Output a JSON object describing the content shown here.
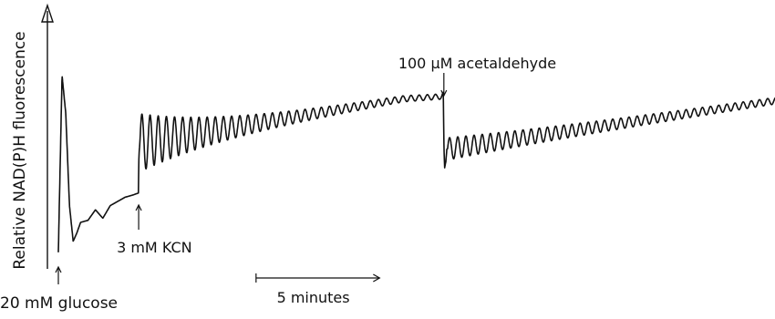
{
  "chart_data": {
    "type": "line",
    "title": "",
    "ylabel": "Relative NAD(P)H fluorescence",
    "xlabel": "",
    "x_unit": "minutes",
    "y_unit": "relative",
    "xlim": [
      0,
      29
    ],
    "ylim": [
      0,
      100
    ],
    "scale_bar": {
      "label": "5 minutes",
      "x_start": 8.0,
      "length": 5
    },
    "annotations": [
      {
        "id": "glucose",
        "text": "20 mM glucose",
        "x": 0.0,
        "direction": "up"
      },
      {
        "id": "kcn",
        "text": "3 mM KCN",
        "x": 3.25,
        "direction": "up"
      },
      {
        "id": "acetaldehyde",
        "text": "100 μM acetaldehyde",
        "x": 15.6,
        "direction": "down"
      }
    ],
    "series": [
      {
        "values_description": "",
        "x": [
          0,
          0.15,
          0.3,
          0.45,
          0.6,
          0.75,
          0.9,
          1.2,
          1.5,
          1.8,
          2.1,
          2.4,
          2.7,
          3.0,
          3.24,
          3.26,
          3.3,
          14.0,
          15.5,
          15.58,
          15.6,
          15.63,
          15.68,
          15.72,
          29.0
        ],
        "y": [
          6,
          90,
          72,
          28,
          11,
          15,
          20,
          21,
          26,
          22,
          28,
          30,
          32,
          33,
          34,
          52,
          58,
          79,
          80,
          81,
          58,
          46,
          49,
          55,
          78
        ]
      }
    ]
  }
}
